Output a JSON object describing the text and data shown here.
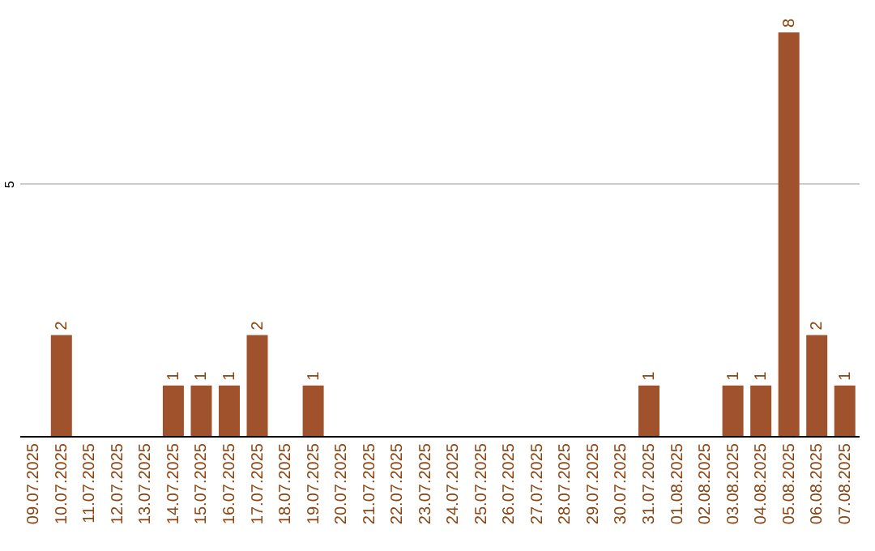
{
  "chart_data": {
    "type": "bar",
    "categories": [
      "09.07.2025",
      "10.07.2025",
      "11.07.2025",
      "12.07.2025",
      "13.07.2025",
      "14.07.2025",
      "15.07.2025",
      "16.07.2025",
      "17.07.2025",
      "18.07.2025",
      "19.07.2025",
      "20.07.2025",
      "21.07.2025",
      "22.07.2025",
      "23.07.2025",
      "24.07.2025",
      "25.07.2025",
      "26.07.2025",
      "27.07.2025",
      "28.07.2025",
      "29.07.2025",
      "30.07.2025",
      "31.07.2025",
      "01.08.2025",
      "02.08.2025",
      "03.08.2025",
      "04.08.2025",
      "05.08.2025",
      "06.08.2025",
      "07.08.2025"
    ],
    "values": [
      0,
      2,
      0,
      0,
      0,
      1,
      1,
      1,
      2,
      0,
      1,
      0,
      0,
      0,
      0,
      0,
      0,
      0,
      0,
      0,
      0,
      0,
      1,
      0,
      0,
      1,
      1,
      8,
      2,
      1
    ],
    "value_labels": [
      null,
      "2",
      null,
      null,
      null,
      "1",
      "1",
      "1",
      "2",
      null,
      "1",
      null,
      null,
      null,
      null,
      null,
      null,
      null,
      null,
      null,
      null,
      null,
      "1",
      null,
      null,
      "1",
      "1",
      "8",
      "2",
      "1"
    ],
    "color": "#a0522d",
    "ylim": [
      0,
      8
    ],
    "yticks": [
      5
    ],
    "grid": "y"
  }
}
